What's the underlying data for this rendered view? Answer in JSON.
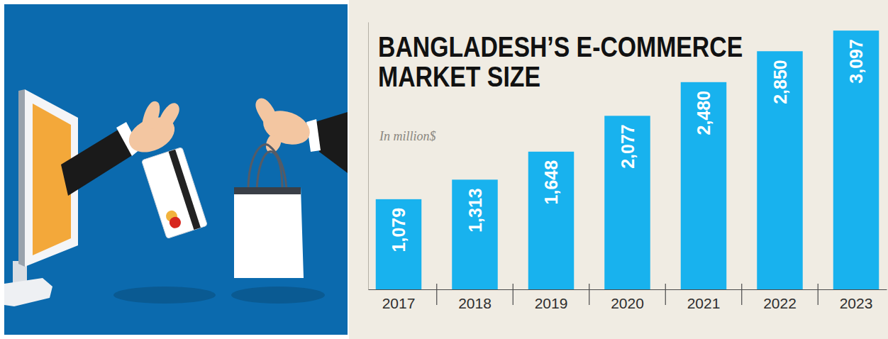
{
  "chart_data": {
    "type": "bar",
    "title": "BANGLADESH’S E-COMMERCE MARKET SIZE",
    "subtitle": "In million$",
    "categories": [
      "2017",
      "2018",
      "2019",
      "2020",
      "2021",
      "2022",
      "2023"
    ],
    "values": [
      1079,
      1313,
      1648,
      2077,
      2480,
      2850,
      3097
    ],
    "value_labels": [
      "1,079",
      "1,313",
      "1,648",
      "2,077",
      "2,480",
      "2,850",
      "3,097"
    ],
    "color": "#18b2ee",
    "ylim": [
      0,
      3200
    ],
    "grid": false,
    "data_labels": true,
    "tick_labels": "x"
  }
}
